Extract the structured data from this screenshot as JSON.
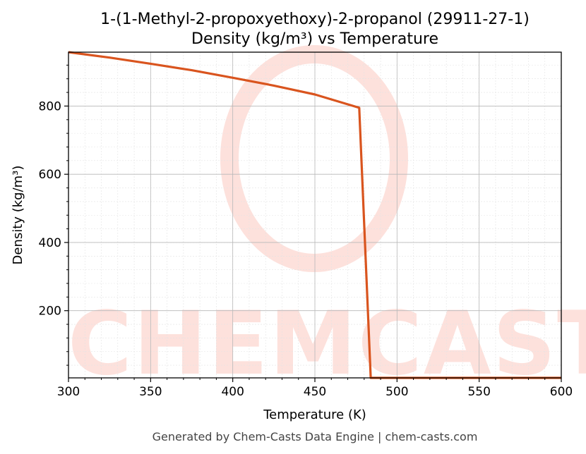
{
  "chart_data": {
    "type": "line",
    "title": "1-(1-Methyl-2-propoxyethoxy)-2-propanol (29911-27-1)",
    "subtitle": "Density (kg/m³) vs Temperature",
    "xlabel": "Temperature (K)",
    "ylabel": "Density (kg/m³)",
    "xlim": [
      300,
      600
    ],
    "ylim": [
      3,
      958
    ],
    "x_ticks": [
      300,
      350,
      400,
      450,
      500,
      550,
      600
    ],
    "y_ticks": [
      200,
      400,
      600,
      800
    ],
    "grid": true,
    "line_color": "#d9541e",
    "series": [
      {
        "x": [
          300,
          325,
          350,
          375,
          400,
          425,
          450,
          477,
          484,
          600
        ],
        "y": [
          958,
          942,
          924,
          905,
          883,
          860,
          834,
          795,
          3,
          3
        ]
      }
    ]
  },
  "watermark": {
    "text": "CHEMCASTS",
    "color": "#fde1dc"
  },
  "footer": "Generated by Chem-Casts Data Engine | chem-casts.com"
}
